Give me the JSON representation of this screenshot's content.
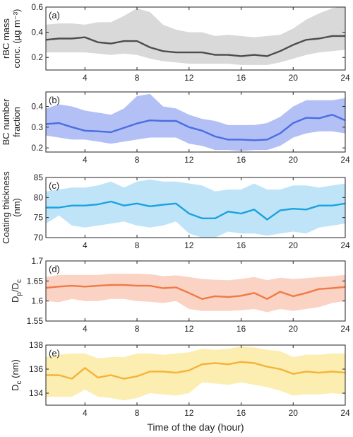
{
  "chart_data": [
    {
      "type": "area",
      "panel_label": "(a)",
      "ylabel_lines": [
        "rBC mass",
        "conc. (µg m⁻³)"
      ],
      "xlabel": "",
      "xlim": [
        1,
        24
      ],
      "ylim": [
        0.1,
        0.6
      ],
      "xticks": [
        4,
        8,
        12,
        16,
        20,
        24
      ],
      "yticks": [
        0.2,
        0.4,
        0.6
      ],
      "ytick_labels": [
        "0.2",
        "0.4",
        "0.6"
      ],
      "colors": {
        "line": "#4d4d4d",
        "band": "#d9d9d9"
      },
      "x": [
        1,
        2,
        3,
        4,
        5,
        6,
        7,
        8,
        9,
        10,
        11,
        12,
        13,
        14,
        15,
        16,
        17,
        18,
        19,
        20,
        21,
        22,
        23,
        24
      ],
      "mean": [
        0.34,
        0.35,
        0.35,
        0.36,
        0.32,
        0.31,
        0.33,
        0.33,
        0.28,
        0.25,
        0.24,
        0.24,
        0.24,
        0.22,
        0.22,
        0.21,
        0.22,
        0.21,
        0.25,
        0.3,
        0.34,
        0.35,
        0.37,
        0.37
      ],
      "upper": [
        0.46,
        0.47,
        0.47,
        0.46,
        0.48,
        0.48,
        0.53,
        0.59,
        0.56,
        0.46,
        0.42,
        0.4,
        0.4,
        0.37,
        0.38,
        0.37,
        0.36,
        0.37,
        0.38,
        0.43,
        0.5,
        0.55,
        0.59,
        0.61
      ],
      "lower": [
        0.24,
        0.24,
        0.24,
        0.24,
        0.23,
        0.22,
        0.23,
        0.22,
        0.19,
        0.17,
        0.16,
        0.15,
        0.15,
        0.15,
        0.15,
        0.14,
        0.14,
        0.14,
        0.16,
        0.19,
        0.22,
        0.24,
        0.25,
        0.26
      ]
    },
    {
      "type": "area",
      "panel_label": "(b)",
      "ylabel_lines": [
        "BC number",
        "fraction"
      ],
      "xlabel": "",
      "xlim": [
        1,
        24
      ],
      "ylim": [
        0.18,
        0.47
      ],
      "xticks": [
        4,
        8,
        12,
        16,
        20,
        24
      ],
      "yticks": [
        0.2,
        0.3,
        0.4
      ],
      "ytick_labels": [
        "0.2",
        "0.3",
        "0.4"
      ],
      "colors": {
        "line": "#4a6ee0",
        "band": "#b3c0f5"
      },
      "x": [
        1,
        2,
        3,
        4,
        5,
        6,
        7,
        8,
        9,
        10,
        11,
        12,
        13,
        14,
        15,
        16,
        17,
        18,
        19,
        20,
        21,
        22,
        23,
        24
      ],
      "mean": [
        0.315,
        0.32,
        0.3,
        0.283,
        0.28,
        0.276,
        0.297,
        0.318,
        0.333,
        0.33,
        0.33,
        0.3,
        0.283,
        0.255,
        0.24,
        0.24,
        0.237,
        0.24,
        0.27,
        0.32,
        0.345,
        0.343,
        0.36,
        0.333
      ],
      "upper": [
        0.39,
        0.41,
        0.4,
        0.38,
        0.37,
        0.36,
        0.39,
        0.45,
        0.46,
        0.4,
        0.39,
        0.36,
        0.34,
        0.33,
        0.31,
        0.31,
        0.31,
        0.32,
        0.35,
        0.4,
        0.43,
        0.43,
        0.43,
        0.44
      ],
      "lower": [
        0.26,
        0.25,
        0.24,
        0.24,
        0.23,
        0.22,
        0.23,
        0.24,
        0.25,
        0.25,
        0.25,
        0.22,
        0.21,
        0.19,
        0.19,
        0.185,
        0.19,
        0.19,
        0.21,
        0.25,
        0.27,
        0.28,
        0.28,
        0.27
      ]
    },
    {
      "type": "area",
      "panel_label": "(c)",
      "ylabel_lines": [
        "Coating thickness",
        "(nm)"
      ],
      "xlabel": "",
      "xlim": [
        1,
        24
      ],
      "ylim": [
        70,
        85
      ],
      "xticks": [
        4,
        8,
        12,
        16,
        20,
        24
      ],
      "yticks": [
        70,
        75,
        80,
        85
      ],
      "ytick_labels": [
        "70",
        "75",
        "80",
        "85"
      ],
      "colors": {
        "line": "#1aa3e0",
        "band": "#bfe4f8"
      },
      "x": [
        1,
        2,
        3,
        4,
        5,
        6,
        7,
        8,
        9,
        10,
        11,
        12,
        13,
        14,
        15,
        16,
        17,
        18,
        19,
        20,
        21,
        22,
        23,
        24
      ],
      "mean": [
        77.5,
        77.5,
        78.0,
        78.0,
        78.3,
        79.0,
        78.0,
        78.5,
        77.8,
        78.2,
        78.5,
        76.0,
        74.8,
        74.8,
        76.5,
        76.0,
        77.0,
        74.5,
        76.8,
        77.2,
        77.0,
        78.0,
        78.0,
        78.5
      ],
      "upper": [
        81.5,
        82.0,
        82.5,
        82.5,
        83.0,
        84.0,
        82.5,
        84.0,
        84.5,
        84.0,
        84.0,
        83.5,
        83.0,
        81.5,
        82.0,
        82.0,
        83.5,
        82.0,
        82.0,
        83.0,
        83.0,
        82.5,
        83.0,
        83.5
      ],
      "lower": [
        73.5,
        75.5,
        73.0,
        72.5,
        73.0,
        73.5,
        74.0,
        73.0,
        72.5,
        73.0,
        74.0,
        71.0,
        70.0,
        70.0,
        71.5,
        71.0,
        71.0,
        70.5,
        71.0,
        71.5,
        71.0,
        72.5,
        73.0,
        73.5
      ]
    },
    {
      "type": "area",
      "panel_label": "(d)",
      "ylabel_main": "D",
      "ylabel_sub1": "p",
      "ylabel_mid": "/D",
      "ylabel_sub2": "c",
      "xlabel": "",
      "xlim": [
        1,
        24
      ],
      "ylim": [
        1.55,
        1.7
      ],
      "xticks": [
        4,
        8,
        12,
        16,
        20,
        24
      ],
      "yticks": [
        1.55,
        1.6,
        1.65,
        1.7
      ],
      "ytick_labels": [
        "1.55",
        "1.6",
        "1.65",
        "1.7"
      ],
      "colors": {
        "line": "#f07a45",
        "band": "#fbd3c4"
      },
      "x": [
        1,
        2,
        3,
        4,
        5,
        6,
        7,
        8,
        9,
        10,
        11,
        12,
        13,
        14,
        15,
        16,
        17,
        18,
        19,
        20,
        21,
        22,
        23,
        24
      ],
      "mean": [
        1.633,
        1.636,
        1.638,
        1.636,
        1.638,
        1.64,
        1.64,
        1.638,
        1.638,
        1.632,
        1.634,
        1.62,
        1.605,
        1.612,
        1.61,
        1.613,
        1.62,
        1.605,
        1.623,
        1.612,
        1.62,
        1.63,
        1.632,
        1.635
      ],
      "upper": [
        1.66,
        1.665,
        1.665,
        1.665,
        1.665,
        1.668,
        1.668,
        1.668,
        1.667,
        1.662,
        1.664,
        1.66,
        1.655,
        1.653,
        1.652,
        1.655,
        1.66,
        1.652,
        1.658,
        1.655,
        1.657,
        1.66,
        1.662,
        1.665
      ],
      "lower": [
        1.6,
        1.597,
        1.605,
        1.6,
        1.6,
        1.605,
        1.605,
        1.6,
        1.598,
        1.595,
        1.6,
        1.58,
        1.575,
        1.575,
        1.575,
        1.577,
        1.58,
        1.572,
        1.58,
        1.575,
        1.58,
        1.585,
        1.595,
        1.6
      ]
    },
    {
      "type": "area",
      "panel_label": "(e)",
      "ylabel_main": "D",
      "ylabel_sub": "c",
      "ylabel_unit": " (nm)",
      "xlabel": "Time of the day (hour)",
      "xlim": [
        1,
        24
      ],
      "ylim": [
        133,
        138
      ],
      "xticks": [
        4,
        8,
        12,
        16,
        20,
        24
      ],
      "yticks": [
        134,
        136,
        138
      ],
      "ytick_labels": [
        "134",
        "136",
        "138"
      ],
      "colors": {
        "line": "#f5b23a",
        "band": "#fbeeb0"
      },
      "x": [
        1,
        2,
        3,
        4,
        5,
        6,
        7,
        8,
        9,
        10,
        11,
        12,
        13,
        14,
        15,
        16,
        17,
        18,
        19,
        20,
        21,
        22,
        23,
        24
      ],
      "mean": [
        135.5,
        135.5,
        135.2,
        136.1,
        135.3,
        135.5,
        135.2,
        135.4,
        135.8,
        135.8,
        135.7,
        135.9,
        136.4,
        136.5,
        136.4,
        136.6,
        136.5,
        136.2,
        136.0,
        135.6,
        135.8,
        135.7,
        135.8,
        135.7
      ],
      "upper": [
        137.0,
        137.2,
        137.3,
        137.3,
        136.9,
        137.0,
        137.0,
        137.3,
        137.3,
        137.2,
        137.3,
        137.4,
        137.7,
        137.6,
        137.7,
        137.9,
        137.8,
        137.6,
        137.5,
        137.0,
        137.2,
        137.2,
        137.3,
        137.3
      ],
      "lower": [
        133.7,
        133.7,
        133.7,
        134.3,
        133.7,
        133.6,
        133.4,
        133.6,
        134.0,
        133.9,
        133.8,
        134.0,
        134.9,
        134.8,
        134.7,
        134.9,
        134.7,
        134.5,
        134.2,
        133.8,
        133.9,
        133.9,
        134.0,
        133.9
      ]
    }
  ]
}
